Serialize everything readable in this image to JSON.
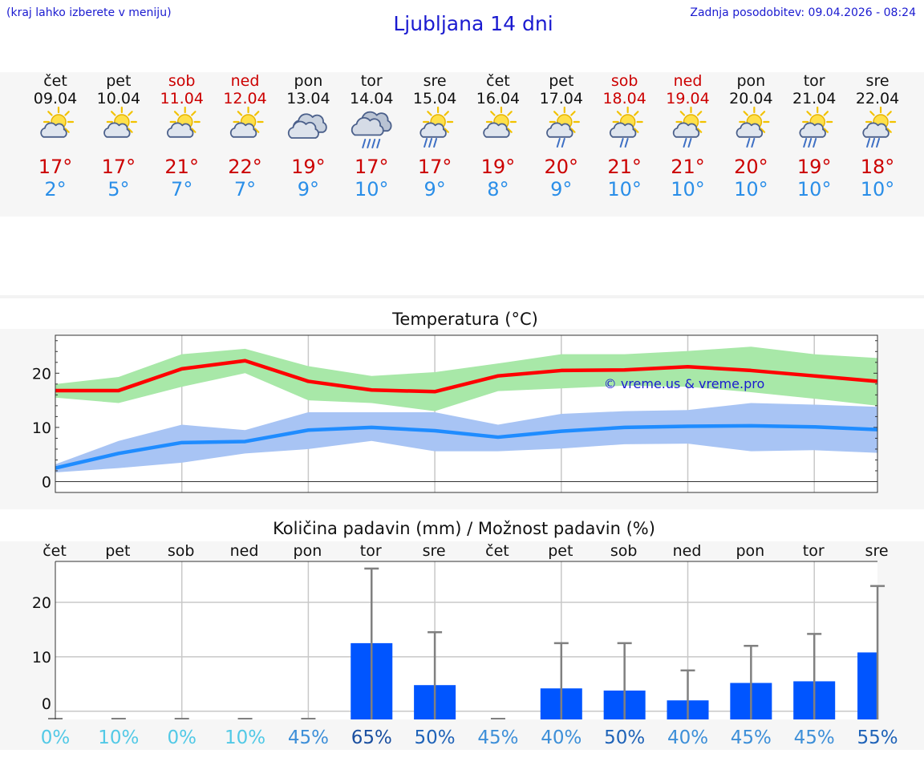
{
  "header": {
    "hint": "(kraj lahko izberete v meniju)",
    "title": "Ljubljana 14 dni",
    "updated": "Zadnja posodobitev: 09.04.2026 - 08:24"
  },
  "days": [
    {
      "name": "čet",
      "date": "09.04",
      "icon": "sun-cloud-icon",
      "tmax": "17°",
      "tmin": "2°",
      "weekend": false
    },
    {
      "name": "pet",
      "date": "10.04",
      "icon": "sun-cloud-icon",
      "tmax": "17°",
      "tmin": "5°",
      "weekend": false
    },
    {
      "name": "sob",
      "date": "11.04",
      "icon": "sun-cloud-icon",
      "tmax": "21°",
      "tmin": "7°",
      "weekend": true
    },
    {
      "name": "ned",
      "date": "12.04",
      "icon": "sun-cloud-icon",
      "tmax": "22°",
      "tmin": "7°",
      "weekend": true
    },
    {
      "name": "pon",
      "date": "13.04",
      "icon": "cloudy-icon",
      "tmax": "19°",
      "tmin": "9°",
      "weekend": false
    },
    {
      "name": "tor",
      "date": "14.04",
      "icon": "cloud-rain-icon",
      "tmax": "17°",
      "tmin": "10°",
      "weekend": false
    },
    {
      "name": "sre",
      "date": "15.04",
      "icon": "sun-cloud-rain-icon",
      "tmax": "17°",
      "tmin": "9°",
      "weekend": false
    },
    {
      "name": "čet",
      "date": "16.04",
      "icon": "sun-cloud-icon",
      "tmax": "19°",
      "tmin": "8°",
      "weekend": false
    },
    {
      "name": "pet",
      "date": "17.04",
      "icon": "sun-cloud-light-rain-icon",
      "tmax": "20°",
      "tmin": "9°",
      "weekend": false
    },
    {
      "name": "sob",
      "date": "18.04",
      "icon": "sun-cloud-light-rain-icon",
      "tmax": "21°",
      "tmin": "10°",
      "weekend": true
    },
    {
      "name": "ned",
      "date": "19.04",
      "icon": "sun-cloud-light-rain-icon",
      "tmax": "21°",
      "tmin": "10°",
      "weekend": true
    },
    {
      "name": "pon",
      "date": "20.04",
      "icon": "sun-cloud-light-rain-icon",
      "tmax": "20°",
      "tmin": "10°",
      "weekend": false
    },
    {
      "name": "tor",
      "date": "21.04",
      "icon": "sun-cloud-rain-icon",
      "tmax": "19°",
      "tmin": "10°",
      "weekend": false
    },
    {
      "name": "sre",
      "date": "22.04",
      "icon": "sun-cloud-rain-icon",
      "tmax": "18°",
      "tmin": "10°",
      "weekend": false
    }
  ],
  "colors": {
    "max": "#ff0000",
    "min": "#1f8cff",
    "max_band": "#a8e8a8",
    "min_band": "#a8c4f4",
    "bar": "#0055ff",
    "error": "#808080"
  },
  "chart_data": [
    {
      "type": "line",
      "title": "Temperatura (°C)",
      "watermark": "© vreme.us & vreme.pro",
      "ylim": [
        -2,
        27
      ],
      "yticks": [
        0,
        10,
        20
      ],
      "grid": true,
      "series": [
        {
          "name": "max",
          "values": [
            16.8,
            16.8,
            20.8,
            22.3,
            18.5,
            16.9,
            16.6,
            19.5,
            20.5,
            20.6,
            21.2,
            20.5,
            19.5,
            18.5
          ]
        },
        {
          "name": "max_upper",
          "values": [
            18.0,
            19.3,
            23.5,
            24.5,
            21.3,
            19.5,
            20.2,
            21.8,
            23.5,
            23.5,
            24.1,
            24.9,
            23.5,
            22.8
          ]
        },
        {
          "name": "max_lower",
          "values": [
            15.5,
            14.5,
            17.5,
            20.0,
            15.0,
            14.5,
            13.0,
            16.7,
            17.2,
            17.7,
            17.5,
            16.5,
            15.3,
            14.0
          ]
        },
        {
          "name": "min",
          "values": [
            2.5,
            5.2,
            7.2,
            7.4,
            9.5,
            10.0,
            9.4,
            8.2,
            9.3,
            10.0,
            10.2,
            10.3,
            10.1,
            9.6
          ]
        },
        {
          "name": "min_upper",
          "values": [
            3.2,
            7.5,
            10.5,
            9.5,
            12.8,
            12.8,
            12.8,
            10.5,
            12.5,
            13.0,
            13.2,
            14.5,
            14.2,
            13.8
          ]
        },
        {
          "name": "min_lower",
          "values": [
            1.7,
            2.5,
            3.5,
            5.2,
            6.0,
            7.5,
            5.6,
            5.6,
            6.1,
            6.9,
            7.0,
            5.6,
            5.8,
            5.3
          ]
        }
      ]
    },
    {
      "type": "bar",
      "title": "Količina padavin (mm) / Možnost padavin (%)",
      "categories": [
        "čet",
        "pet",
        "sob",
        "ned",
        "pon",
        "tor",
        "sre",
        "čet",
        "pet",
        "sob",
        "ned",
        "pon",
        "tor",
        "sre"
      ],
      "values": [
        0,
        0,
        0,
        0,
        0,
        12.5,
        4.8,
        0,
        4.2,
        3.8,
        2.0,
        5.2,
        5.5,
        10.8
      ],
      "error_upper": [
        0,
        0,
        0,
        0,
        0,
        26.2,
        14.5,
        0,
        12.5,
        12.5,
        7.5,
        12.0,
        14.2,
        23.0
      ],
      "chance": [
        "0%",
        "10%",
        "0%",
        "10%",
        "45%",
        "65%",
        "50%",
        "45%",
        "40%",
        "50%",
        "40%",
        "45%",
        "45%",
        "55%"
      ],
      "chance_values": [
        0,
        10,
        0,
        10,
        45,
        65,
        50,
        45,
        40,
        50,
        40,
        45,
        45,
        55
      ],
      "ylim": [
        -1.5,
        27.5
      ],
      "yticks": [
        0,
        10,
        20
      ]
    }
  ]
}
